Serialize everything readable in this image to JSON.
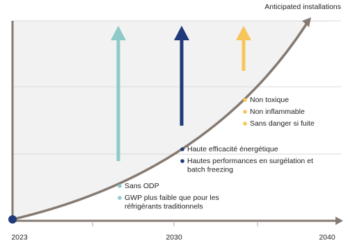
{
  "header": {
    "title": "Anticipated installations"
  },
  "x_axis": {
    "labels": [
      "2023",
      "2030",
      "2040"
    ]
  },
  "groups": [
    {
      "items": [
        [
          "Sans ODP"
        ],
        [
          "GWP plus faible que pour les",
          "réfrigérants traditionnels"
        ]
      ]
    },
    {
      "items": [
        [
          "Haute efficacité énergétique"
        ],
        [
          "Hautes performances en surgélation et",
          "batch freezing"
        ]
      ]
    },
    {
      "items": [
        [
          "Non toxique"
        ],
        [
          "Non inflammable"
        ],
        [
          "Sans danger si fuite"
        ]
      ]
    }
  ]
}
